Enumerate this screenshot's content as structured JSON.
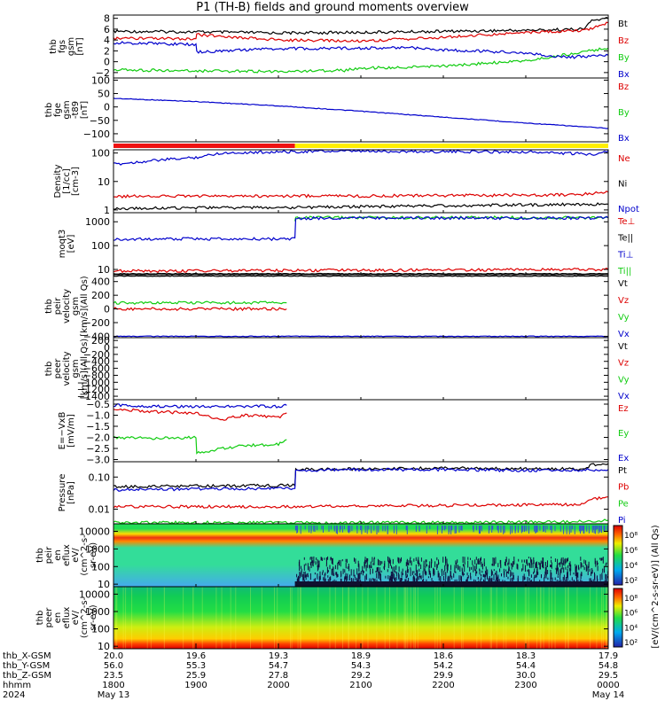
{
  "title": "P1 (TH-B) fields and ground moments overview",
  "colors": {
    "black": "#000000",
    "red": "#dd0000",
    "green": "#11cc11",
    "blue": "#0000cc",
    "yellow": "#ffee00",
    "barRed": "#ee1111"
  },
  "chart_data": [
    {
      "id": "fgs",
      "type": "line",
      "ylabel": [
        "thb",
        "fgs",
        "gsm",
        "[nT]"
      ],
      "yticks": [
        "8",
        "6",
        "4",
        "2",
        "0",
        "−2"
      ],
      "ylim": [
        -3,
        8.6
      ],
      "legend": [
        "Bt",
        "Bz",
        "By",
        "Bx"
      ],
      "series": [
        {
          "name": "Bt",
          "color": "black",
          "x": [
            18.0,
            19.0,
            20.0,
            21.0,
            22.0,
            23.0,
            23.7,
            23.8,
            24.0
          ],
          "y": [
            5.6,
            5.5,
            5.3,
            5.4,
            5.6,
            5.8,
            6.0,
            7.6,
            8.0
          ]
        },
        {
          "name": "Bz",
          "color": "red",
          "x": [
            18.0,
            19.0,
            19.01,
            20.0,
            21.0,
            22.0,
            23.0,
            23.7,
            24.0
          ],
          "y": [
            4.3,
            4.2,
            5.0,
            4.0,
            3.8,
            4.5,
            5.4,
            5.7,
            7.2
          ]
        },
        {
          "name": "By",
          "color": "green",
          "x": [
            18.0,
            19.0,
            20.0,
            20.8,
            21.0,
            22.0,
            23.0,
            24.0
          ],
          "y": [
            -1.5,
            -1.7,
            -1.8,
            -1.6,
            -1.2,
            -0.8,
            0.2,
            2.5
          ]
        },
        {
          "name": "Bx",
          "color": "blue",
          "x": [
            18.0,
            19.0,
            19.01,
            20.0,
            21.0,
            21.6,
            22.0,
            23.0,
            23.5,
            24.0
          ],
          "y": [
            3.5,
            3.2,
            1.8,
            2.4,
            2.5,
            2.6,
            2.2,
            1.6,
            0.8,
            1.2
          ]
        }
      ]
    },
    {
      "id": "fge",
      "type": "line",
      "ylabel": [
        "thb",
        "fge",
        "gsm",
        "-t89",
        "[nT]"
      ],
      "yticks": [
        "100",
        "50",
        "0",
        "−50",
        "−100"
      ],
      "ylim": [
        -130,
        108
      ],
      "legend": [
        "Bz",
        "By",
        "Bx"
      ],
      "series": [
        {
          "name": "Bx",
          "color": "blue",
          "x": [
            18.0,
            19.0,
            20.0,
            21.0,
            22.0,
            23.0,
            24.0
          ],
          "y": [
            32,
            20,
            4,
            -16,
            -38,
            -60,
            -80
          ]
        }
      ]
    },
    {
      "id": "density",
      "type": "line",
      "ylabel": [
        "Density",
        "[1/cc]",
        "[cm-3]"
      ],
      "yticks": [
        "100",
        "10",
        "1"
      ],
      "log": true,
      "ylim": [
        0.8,
        130
      ],
      "legend": [
        "Ne",
        "Ni",
        "Npot"
      ],
      "series": [
        {
          "name": "Ne",
          "color": "blue",
          "x": [
            18.0,
            18.5,
            19.0,
            19.3,
            20.0,
            20.5,
            21.0,
            22.0,
            23.0,
            23.8,
            24.0
          ],
          "y": [
            40,
            55,
            70,
            100,
            110,
            115,
            115,
            112,
            110,
            90,
            120
          ]
        },
        {
          "name": "Ni",
          "color": "red",
          "x": [
            18.0,
            19.0,
            20.0,
            21.0,
            22.0,
            23.0,
            23.6,
            24.0
          ],
          "y": [
            3.0,
            3.1,
            3.1,
            3.1,
            3.2,
            3.3,
            3.4,
            4.2
          ]
        },
        {
          "name": "Npot",
          "color": "black",
          "x": [
            18.0,
            19.0,
            20.0,
            21.0,
            22.0,
            23.0,
            24.0
          ],
          "y": [
            1.1,
            1.2,
            1.2,
            1.3,
            1.4,
            1.5,
            1.6
          ]
        }
      ]
    },
    {
      "id": "temperature",
      "type": "line",
      "ylabel": [
        "moqt3",
        "[eV]"
      ],
      "yticks": [
        "1000",
        "100",
        "10"
      ],
      "log": true,
      "ylim": [
        6,
        2400
      ],
      "legend": [
        "Te⊥",
        "Te||",
        "Ti⊥",
        "Ti||"
      ],
      "series": [
        {
          "name": "Ti||",
          "color": "green",
          "x": [
            20.2,
            20.21,
            24.0
          ],
          "y": [
            1000,
            1500,
            1500
          ]
        },
        {
          "name": "Ti⊥",
          "color": "blue",
          "x": [
            18.0,
            20.2,
            20.21,
            24.0
          ],
          "y": [
            190,
            190,
            1400,
            1450
          ]
        },
        {
          "name": "Te⊥",
          "color": "red",
          "x": [
            18.0,
            20.0,
            22.0,
            24.0
          ],
          "y": [
            8.5,
            9.0,
            9.5,
            10.0
          ]
        },
        {
          "name": "Te||",
          "color": "black",
          "x": [
            18.0,
            24.0
          ],
          "y": [
            6.6,
            6.6
          ]
        }
      ]
    },
    {
      "id": "peir",
      "type": "line",
      "ylabel": [
        "thb",
        "peir",
        "velocity",
        "gsm",
        "[km/s](All Qs)"
      ],
      "yticks": [
        "400",
        "200",
        "0",
        "−200",
        "−400"
      ],
      "ylim": [
        -420,
        500
      ],
      "legend": [
        "Vt",
        "Vz",
        "Vy",
        "Vx"
      ],
      "series": [
        {
          "name": "Vt",
          "color": "black",
          "x": [
            18.0,
            24.0
          ],
          "y": [
            480,
            480
          ]
        },
        {
          "name": "Vy",
          "color": "green",
          "x": [
            18.0,
            20.1
          ],
          "y": [
            90,
            90
          ]
        },
        {
          "name": "Vz",
          "color": "red",
          "x": [
            18.0,
            20.1
          ],
          "y": [
            0,
            0
          ]
        },
        {
          "name": "Vx",
          "color": "blue",
          "x": [
            18.0,
            24.0
          ],
          "y": [
            -400,
            -400
          ]
        }
      ]
    },
    {
      "id": "peer",
      "type": "line",
      "ylabel": [
        "thb",
        "peer",
        "velocity",
        "gsm",
        "[km/s](All Qs)"
      ],
      "yticks": [
        "200",
        "0",
        "−200",
        "−400",
        "−600",
        "−800",
        "−1000",
        "−1200",
        "−1400"
      ],
      "ylim": [
        -1500,
        280
      ],
      "legend": [
        "Vt",
        "Vz",
        "Vy",
        "Vx"
      ],
      "series": []
    },
    {
      "id": "efield",
      "type": "line",
      "ylabel": [
        "E=−VxB",
        "[mV/m]"
      ],
      "yticks": [
        "−0.5",
        "−1.0",
        "−1.5",
        "−2.0",
        "−2.5",
        "−3.0"
      ],
      "ylim": [
        -3.1,
        -0.3
      ],
      "legend": [
        "Ez",
        "Ey",
        "Ex"
      ],
      "series": [
        {
          "name": "Ex",
          "color": "blue",
          "x": [
            18.0,
            18.5,
            19.0,
            19.5,
            20.0,
            20.1
          ],
          "y": [
            -0.55,
            -0.6,
            -0.6,
            -0.6,
            -0.6,
            -0.55
          ]
        },
        {
          "name": "Ez",
          "color": "red",
          "x": [
            18.0,
            18.5,
            19.0,
            19.3,
            19.6,
            20.0,
            20.1
          ],
          "y": [
            -0.7,
            -0.85,
            -0.9,
            -1.2,
            -1.0,
            -1.1,
            -0.9
          ]
        },
        {
          "name": "Ey",
          "color": "green",
          "x": [
            18.0,
            18.5,
            19.0,
            19.01,
            19.5,
            20.0,
            20.1
          ],
          "y": [
            -2.0,
            -2.05,
            -2.0,
            -2.7,
            -2.4,
            -2.3,
            -2.1
          ]
        }
      ]
    },
    {
      "id": "pressure",
      "type": "line",
      "ylabel": [
        "Pressure",
        "[nPa]"
      ],
      "yticks": [
        "0.10",
        "0.01"
      ],
      "log": true,
      "ylim": [
        0.0035,
        0.3
      ],
      "legend": [
        "Pt",
        "Pb",
        "Pe",
        "Pi"
      ],
      "series": [
        {
          "name": "Pt",
          "color": "black",
          "x": [
            18.0,
            20.2,
            20.21,
            21.0,
            22.0,
            23.0,
            23.7,
            23.8,
            24.0
          ],
          "y": [
            0.05,
            0.055,
            0.17,
            0.18,
            0.19,
            0.18,
            0.18,
            0.24,
            0.26
          ]
        },
        {
          "name": "Pb",
          "color": "red",
          "x": [
            18.0,
            20.0,
            22.0,
            23.7,
            23.8,
            24.0
          ],
          "y": [
            0.012,
            0.012,
            0.013,
            0.014,
            0.02,
            0.024
          ]
        },
        {
          "name": "Pi",
          "color": "blue",
          "x": [
            18.0,
            20.2,
            20.21,
            21.0,
            22.0,
            23.0,
            24.0
          ],
          "y": [
            0.04,
            0.045,
            0.16,
            0.17,
            0.17,
            0.16,
            0.17
          ]
        },
        {
          "name": "Pe",
          "color": "green",
          "x": [
            18.0,
            22.0,
            23.5,
            24.0
          ],
          "y": [
            0.0038,
            0.0038,
            0.004,
            0.0045
          ]
        }
      ]
    },
    {
      "id": "peir_spec",
      "type": "heatmap",
      "ylabel": [
        "thb",
        "peir",
        "en",
        "eflux",
        "eV/",
        "(cm^2-s-",
        "sr-eV)"
      ],
      "yticks": [
        "10000",
        "1000",
        "100",
        "10"
      ],
      "ylim": [
        6,
        22000
      ],
      "colorbar_label": "[eV/(cm^2-s-sr-eV)] (All Qs)",
      "colorbar_ticks": [
        "10⁸",
        "10⁶",
        "10⁴",
        "10²"
      ]
    },
    {
      "id": "peer_spec",
      "type": "heatmap",
      "ylabel": [
        "thb",
        "peer",
        "en",
        "eflux",
        "eV/",
        "(cm^2-s-",
        "sr-eV)"
      ],
      "yticks": [
        "10000",
        "1000",
        "100",
        "10"
      ],
      "ylim": [
        6,
        22000
      ],
      "colorbar_label": "[eV/(cm^2-s-sr-eV)]",
      "colorbar_ticks": [
        "10⁸",
        "10⁶",
        "10⁴",
        "10²"
      ]
    }
  ],
  "xaxis": {
    "xlim": [
      18.0,
      24.0
    ],
    "rows": [
      {
        "label": "thb_X-GSM",
        "values": [
          "20.0",
          "19.6",
          "19.3",
          "18.9",
          "18.6",
          "18.3",
          "17.9"
        ]
      },
      {
        "label": "thb_Y-GSM",
        "values": [
          "56.0",
          "55.3",
          "54.7",
          "54.3",
          "54.2",
          "54.4",
          "54.8"
        ]
      },
      {
        "label": "thb_Z-GSM",
        "values": [
          "23.5",
          "25.9",
          "27.8",
          "29.2",
          "29.9",
          "30.0",
          "29.5"
        ]
      },
      {
        "label": "hhmm",
        "values": [
          "1800",
          "1900",
          "2000",
          "2100",
          "2200",
          "2300",
          "0000"
        ]
      },
      {
        "label": "2024",
        "values": [
          "May 13",
          "",
          "",
          "",
          "",
          "",
          "May 14"
        ]
      }
    ]
  },
  "mode_bar": {
    "change_hour": 20.2
  }
}
